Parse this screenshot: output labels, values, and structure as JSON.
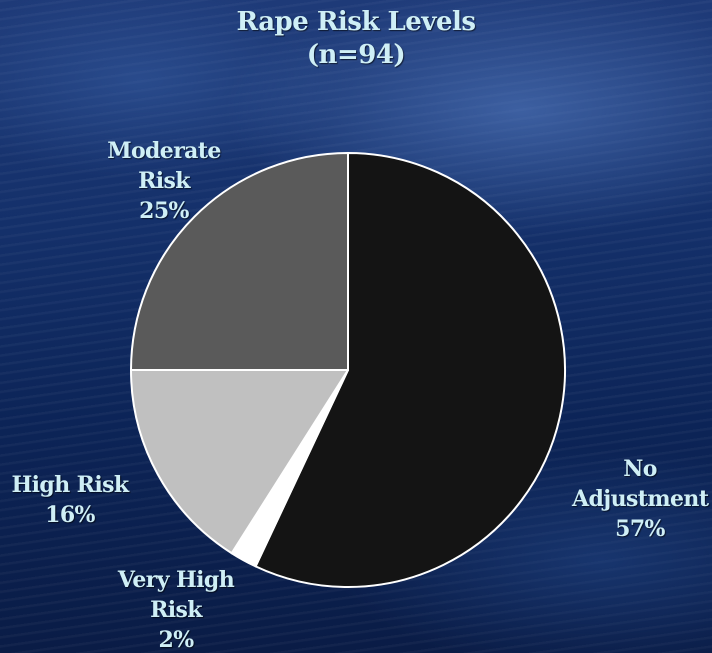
{
  "chart_data": {
    "type": "pie",
    "title": "Rape Risk Levels",
    "subtitle": "(n=94)",
    "slices": [
      {
        "label": [
          "No",
          "Adjustment"
        ],
        "value": 57,
        "value_label": "57%",
        "color": "#141414"
      },
      {
        "label": [
          "Very High",
          "Risk"
        ],
        "value": 2,
        "value_label": "2%",
        "color": "#ffffff"
      },
      {
        "label": [
          "High Risk"
        ],
        "value": 16,
        "value_label": "16%",
        "color": "#c0c0c0"
      },
      {
        "label": [
          "Moderate",
          "Risk"
        ],
        "value": 25,
        "value_label": "25%",
        "color": "#5a5a5a"
      }
    ]
  }
}
